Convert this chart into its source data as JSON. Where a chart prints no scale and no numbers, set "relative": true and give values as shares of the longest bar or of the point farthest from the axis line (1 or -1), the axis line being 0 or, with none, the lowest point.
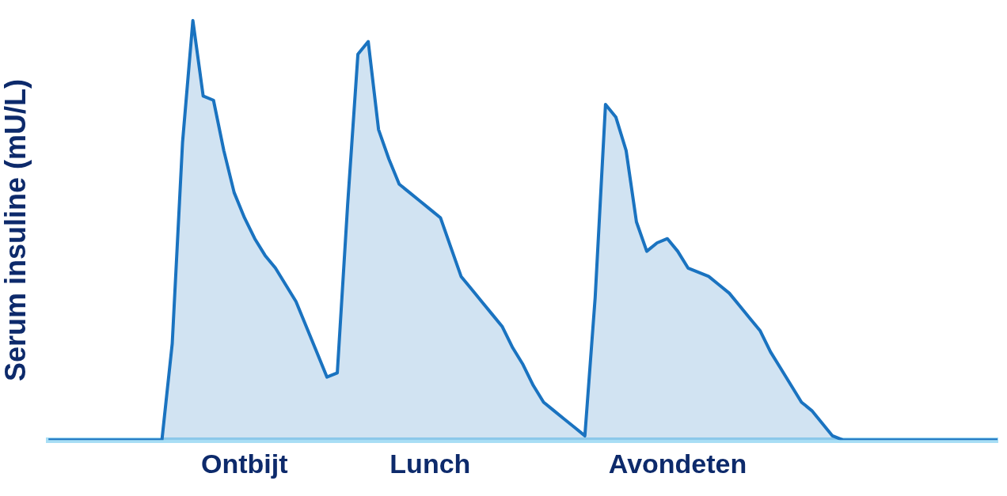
{
  "chart_data": {
    "type": "area",
    "relative": true,
    "ylabel": "Serum insuline (mU/L)",
    "categories": [
      null,
      null,
      null,
      null,
      null,
      null,
      null,
      null,
      null,
      null,
      null,
      null,
      null,
      null,
      null,
      null,
      null,
      null,
      null,
      "Ontbijt",
      null,
      null,
      null,
      null,
      null,
      null,
      null,
      null,
      null,
      null,
      null,
      null,
      null,
      null,
      null,
      null,
      null,
      "Lunch",
      null,
      null,
      null,
      null,
      null,
      null,
      null,
      null,
      null,
      null,
      null,
      null,
      null,
      null,
      null,
      null,
      null,
      null,
      null,
      null,
      null,
      null,
      null,
      "Avondeten",
      null,
      null,
      null,
      null,
      null,
      null,
      null,
      null,
      null,
      null,
      null,
      null,
      null,
      null,
      null,
      null,
      null,
      null,
      null,
      null,
      null,
      null,
      null,
      null,
      null,
      null,
      null,
      null,
      null,
      null,
      null
    ],
    "series": [
      {
        "color": "#1a73c0",
        "values": [
          0,
          0,
          0,
          0,
          0,
          0,
          0,
          0,
          0,
          0,
          0,
          0,
          0.23,
          0.71,
          1.0,
          0.82,
          0.81,
          0.69,
          0.59,
          0.53,
          0.48,
          0.44,
          0.41,
          0.37,
          0.33,
          0.27,
          0.21,
          0.15,
          0.16,
          0.56,
          0.92,
          0.95,
          0.74,
          0.67,
          0.61,
          0.59,
          0.57,
          0.55,
          0.53,
          0.46,
          0.39,
          0.36,
          0.33,
          0.3,
          0.27,
          0.22,
          0.18,
          0.13,
          0.09,
          0.07,
          0.05,
          0.03,
          0.01,
          0.34,
          0.8,
          0.77,
          0.69,
          0.52,
          0.45,
          0.47,
          0.48,
          0.45,
          0.41,
          0.4,
          0.39,
          0.37,
          0.35,
          0.32,
          0.29,
          0.26,
          0.21,
          0.17,
          0.13,
          0.09,
          0.07,
          0.04,
          0.01,
          0,
          0,
          0,
          0,
          0,
          0,
          0,
          0,
          0,
          0,
          0,
          0,
          0,
          0,
          0,
          0
        ]
      }
    ],
    "grid": false,
    "legend": false,
    "marker": "none"
  }
}
